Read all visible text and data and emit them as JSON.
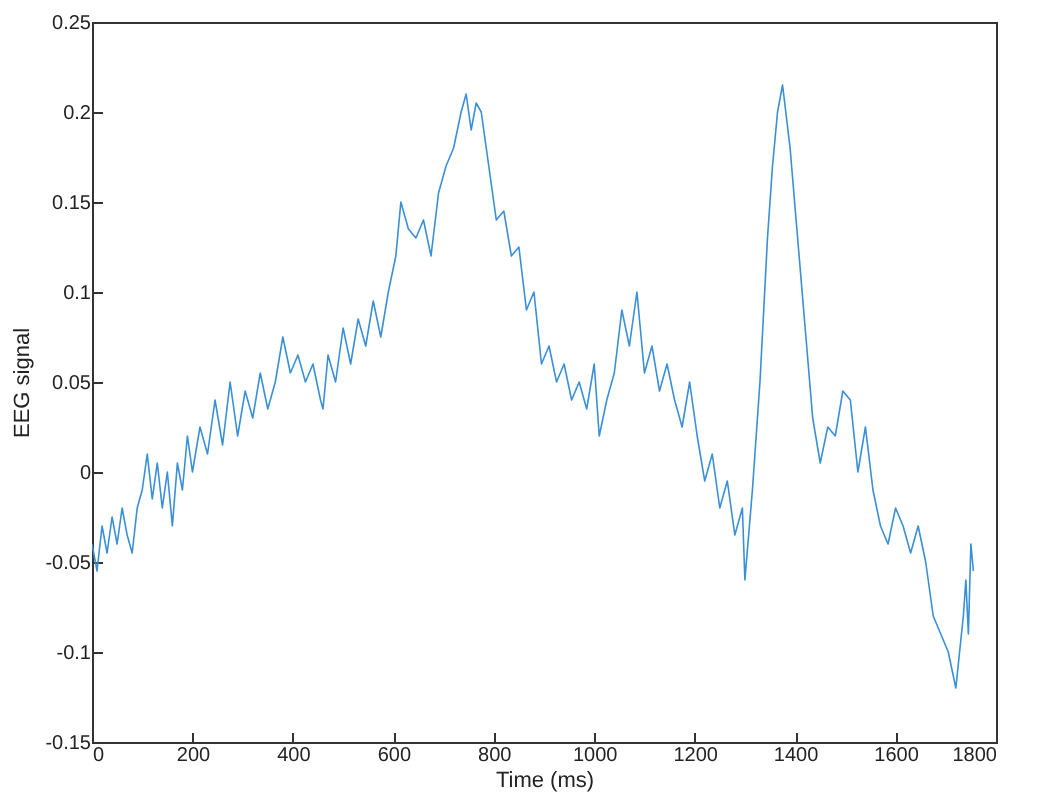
{
  "chart_data": {
    "type": "line",
    "xlabel": "Time (ms)",
    "ylabel": "EEG signal",
    "x": [
      0,
      10,
      20,
      30,
      40,
      50,
      60,
      70,
      80,
      90,
      100,
      110,
      120,
      130,
      140,
      150,
      160,
      170,
      180,
      190,
      200,
      215,
      230,
      245,
      260,
      275,
      290,
      305,
      320,
      335,
      350,
      365,
      380,
      395,
      410,
      425,
      440,
      455,
      460,
      470,
      485,
      500,
      515,
      530,
      545,
      560,
      575,
      590,
      605,
      615,
      630,
      645,
      660,
      675,
      690,
      705,
      720,
      735,
      745,
      755,
      765,
      775,
      790,
      805,
      820,
      835,
      850,
      865,
      880,
      895,
      910,
      925,
      940,
      955,
      970,
      985,
      1000,
      1010,
      1025,
      1040,
      1055,
      1070,
      1085,
      1100,
      1115,
      1130,
      1145,
      1160,
      1175,
      1190,
      1205,
      1220,
      1235,
      1250,
      1265,
      1280,
      1295,
      1300,
      1315,
      1330,
      1345,
      1355,
      1365,
      1375,
      1390,
      1405,
      1420,
      1435,
      1450,
      1465,
      1480,
      1495,
      1510,
      1525,
      1540,
      1555,
      1570,
      1585,
      1600,
      1615,
      1630,
      1645,
      1660,
      1675,
      1690,
      1705,
      1720,
      1735,
      1740,
      1745,
      1750,
      1755
    ],
    "series": [
      {
        "color": "#3a8fd9",
        "values": [
          -0.04,
          -0.055,
          -0.03,
          -0.045,
          -0.025,
          -0.04,
          -0.02,
          -0.035,
          -0.045,
          -0.02,
          -0.01,
          0.01,
          -0.015,
          0.005,
          -0.02,
          0.0,
          -0.03,
          0.005,
          -0.01,
          0.02,
          0.0,
          0.025,
          0.01,
          0.04,
          0.015,
          0.05,
          0.02,
          0.045,
          0.03,
          0.055,
          0.035,
          0.05,
          0.075,
          0.055,
          0.065,
          0.05,
          0.06,
          0.04,
          0.035,
          0.065,
          0.05,
          0.08,
          0.06,
          0.085,
          0.07,
          0.095,
          0.075,
          0.1,
          0.12,
          0.15,
          0.135,
          0.13,
          0.14,
          0.12,
          0.155,
          0.17,
          0.18,
          0.2,
          0.21,
          0.19,
          0.205,
          0.2,
          0.17,
          0.14,
          0.145,
          0.12,
          0.125,
          0.09,
          0.1,
          0.06,
          0.07,
          0.05,
          0.06,
          0.04,
          0.05,
          0.035,
          0.06,
          0.02,
          0.04,
          0.055,
          0.09,
          0.07,
          0.1,
          0.055,
          0.07,
          0.045,
          0.06,
          0.04,
          0.025,
          0.05,
          0.02,
          -0.005,
          0.01,
          -0.02,
          -0.005,
          -0.035,
          -0.02,
          -0.06,
          -0.01,
          0.05,
          0.13,
          0.17,
          0.2,
          0.215,
          0.18,
          0.13,
          0.08,
          0.03,
          0.005,
          0.025,
          0.02,
          0.045,
          0.04,
          0.0,
          0.025,
          -0.01,
          -0.03,
          -0.04,
          -0.02,
          -0.03,
          -0.045,
          -0.03,
          -0.05,
          -0.08,
          -0.09,
          -0.1,
          -0.12,
          -0.08,
          -0.06,
          -0.09,
          -0.04,
          -0.055
        ]
      }
    ],
    "xlim": [
      0,
      1800
    ],
    "ylim": [
      -0.15,
      0.25
    ],
    "xticks": [
      0,
      200,
      400,
      600,
      800,
      1000,
      1200,
      1400,
      1600,
      1800
    ],
    "yticks": [
      -0.15,
      -0.1,
      -0.05,
      0,
      0.05,
      0.1,
      0.15,
      0.2,
      0.25
    ],
    "grid": false
  }
}
